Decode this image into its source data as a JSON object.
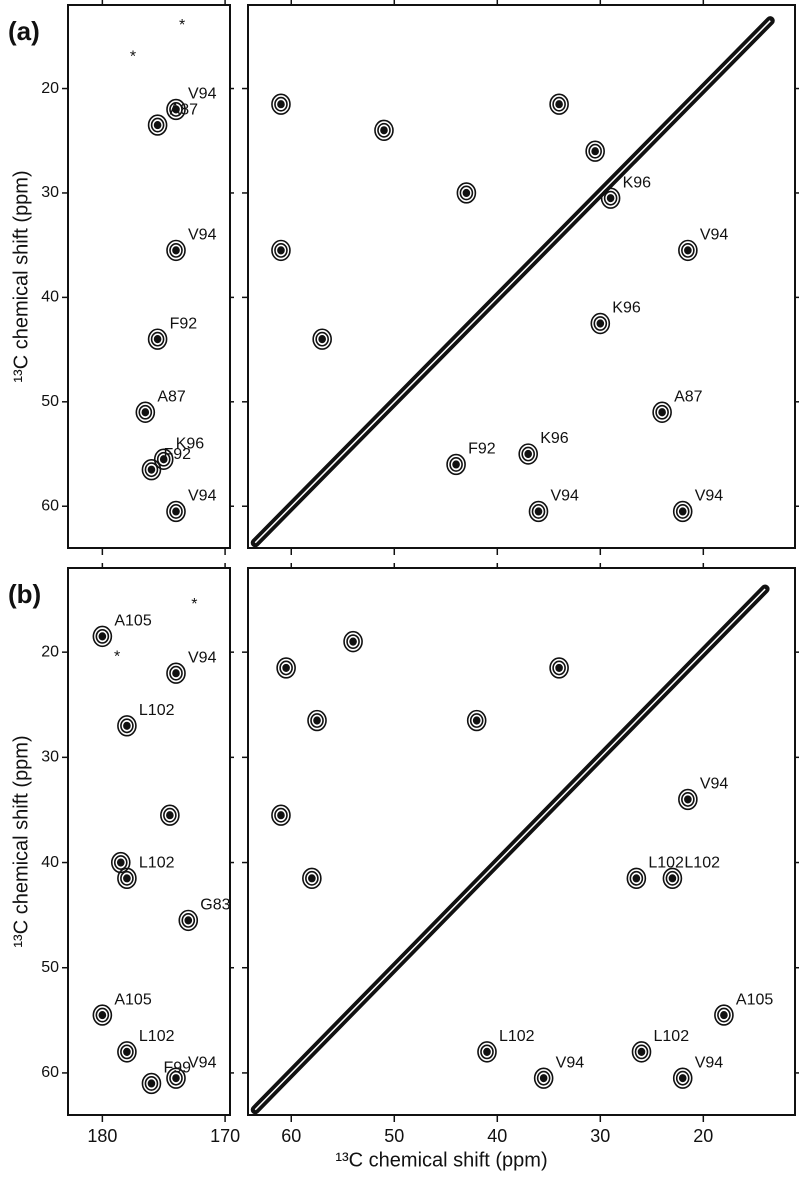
{
  "chart_data": [
    {
      "type": "scatter",
      "panel_label": "(a)",
      "y_label": "¹³C chemical shift (ppm)",
      "xlim": [
        182.8,
        169.6
      ],
      "xticks": [
        180,
        170
      ],
      "ylim": [
        12,
        64
      ],
      "yticks": [
        20,
        30,
        40,
        50,
        60
      ],
      "show_xtick_labels": false,
      "show_ytick_labels": true,
      "points": {
        "x": [
          175.5,
          174,
          174,
          175.5,
          176.5,
          175,
          176,
          174,
          177.5,
          173.5
        ],
        "y": [
          23.5,
          22,
          35.5,
          44,
          51,
          55.5,
          56.5,
          60.5,
          17,
          14
        ],
        "labels": [
          "A87",
          "V94",
          "V94",
          "F92",
          "A87",
          "K96",
          "F92",
          "V94",
          "*",
          "*"
        ]
      }
    },
    {
      "type": "scatter",
      "xlim": [
        64.2,
        11.1
      ],
      "xticks": [
        60,
        50,
        40,
        30,
        20
      ],
      "ylim": [
        12,
        64
      ],
      "yticks": [
        20,
        30,
        40,
        50,
        60
      ],
      "show_xtick_labels": false,
      "show_ytick_labels": false,
      "diagonal": [
        63.5,
        13.5
      ],
      "points": {
        "x": [
          61,
          61,
          57,
          51,
          34,
          43,
          30.5,
          21.5,
          30,
          24,
          44,
          36,
          22,
          37,
          29
        ],
        "y": [
          21.5,
          35.5,
          44,
          24,
          21.5,
          30,
          26,
          35.5,
          42.5,
          51,
          56,
          60.5,
          60.5,
          55,
          30.5
        ],
        "labels": [
          null,
          null,
          null,
          null,
          null,
          null,
          null,
          "V94",
          "K96",
          "A87",
          "F92",
          "V94",
          "V94",
          "K96",
          "K96"
        ]
      }
    },
    {
      "type": "scatter",
      "panel_label": "(b)",
      "y_label": "¹³C chemical shift (ppm)",
      "xlim": [
        182.8,
        169.6
      ],
      "xticks": [
        180,
        170
      ],
      "ylim": [
        12,
        64
      ],
      "yticks": [
        20,
        30,
        40,
        50,
        60
      ],
      "show_xtick_labels": true,
      "show_ytick_labels": true,
      "points": {
        "x": [
          180,
          174,
          178,
          178,
          173,
          180,
          178,
          174,
          176,
          174.5,
          178.5,
          172.5,
          178.8
        ],
        "y": [
          18.5,
          22,
          27,
          41.5,
          45.5,
          54.5,
          58,
          60.5,
          61,
          35.5,
          40,
          15.5,
          20.5
        ],
        "labels": [
          "A105",
          "V94",
          "L102",
          "L102",
          "G83",
          "A105",
          "L102",
          "V94",
          "F99",
          null,
          null,
          "*",
          "*"
        ]
      }
    },
    {
      "type": "scatter",
      "x_label": "¹³C chemical shift (ppm)",
      "xlim": [
        64.2,
        11.1
      ],
      "xticks": [
        60,
        50,
        40,
        30,
        20
      ],
      "ylim": [
        12,
        64
      ],
      "yticks": [
        20,
        30,
        40,
        50,
        60
      ],
      "show_xtick_labels": true,
      "show_ytick_labels": false,
      "diagonal": [
        63.5,
        14
      ],
      "points": {
        "x": [
          60.5,
          57.5,
          54,
          58,
          61,
          42,
          34,
          21.5,
          26.5,
          23,
          18,
          26,
          22,
          41,
          35.5
        ],
        "y": [
          21.5,
          26.5,
          19,
          41.5,
          35.5,
          26.5,
          21.5,
          34,
          41.5,
          41.5,
          54.5,
          58,
          60.5,
          58,
          60.5
        ],
        "labels": [
          null,
          null,
          null,
          null,
          null,
          null,
          null,
          "V94",
          "L102",
          "L102",
          "A105",
          "L102",
          "V94",
          "L102",
          "V94"
        ]
      }
    }
  ]
}
